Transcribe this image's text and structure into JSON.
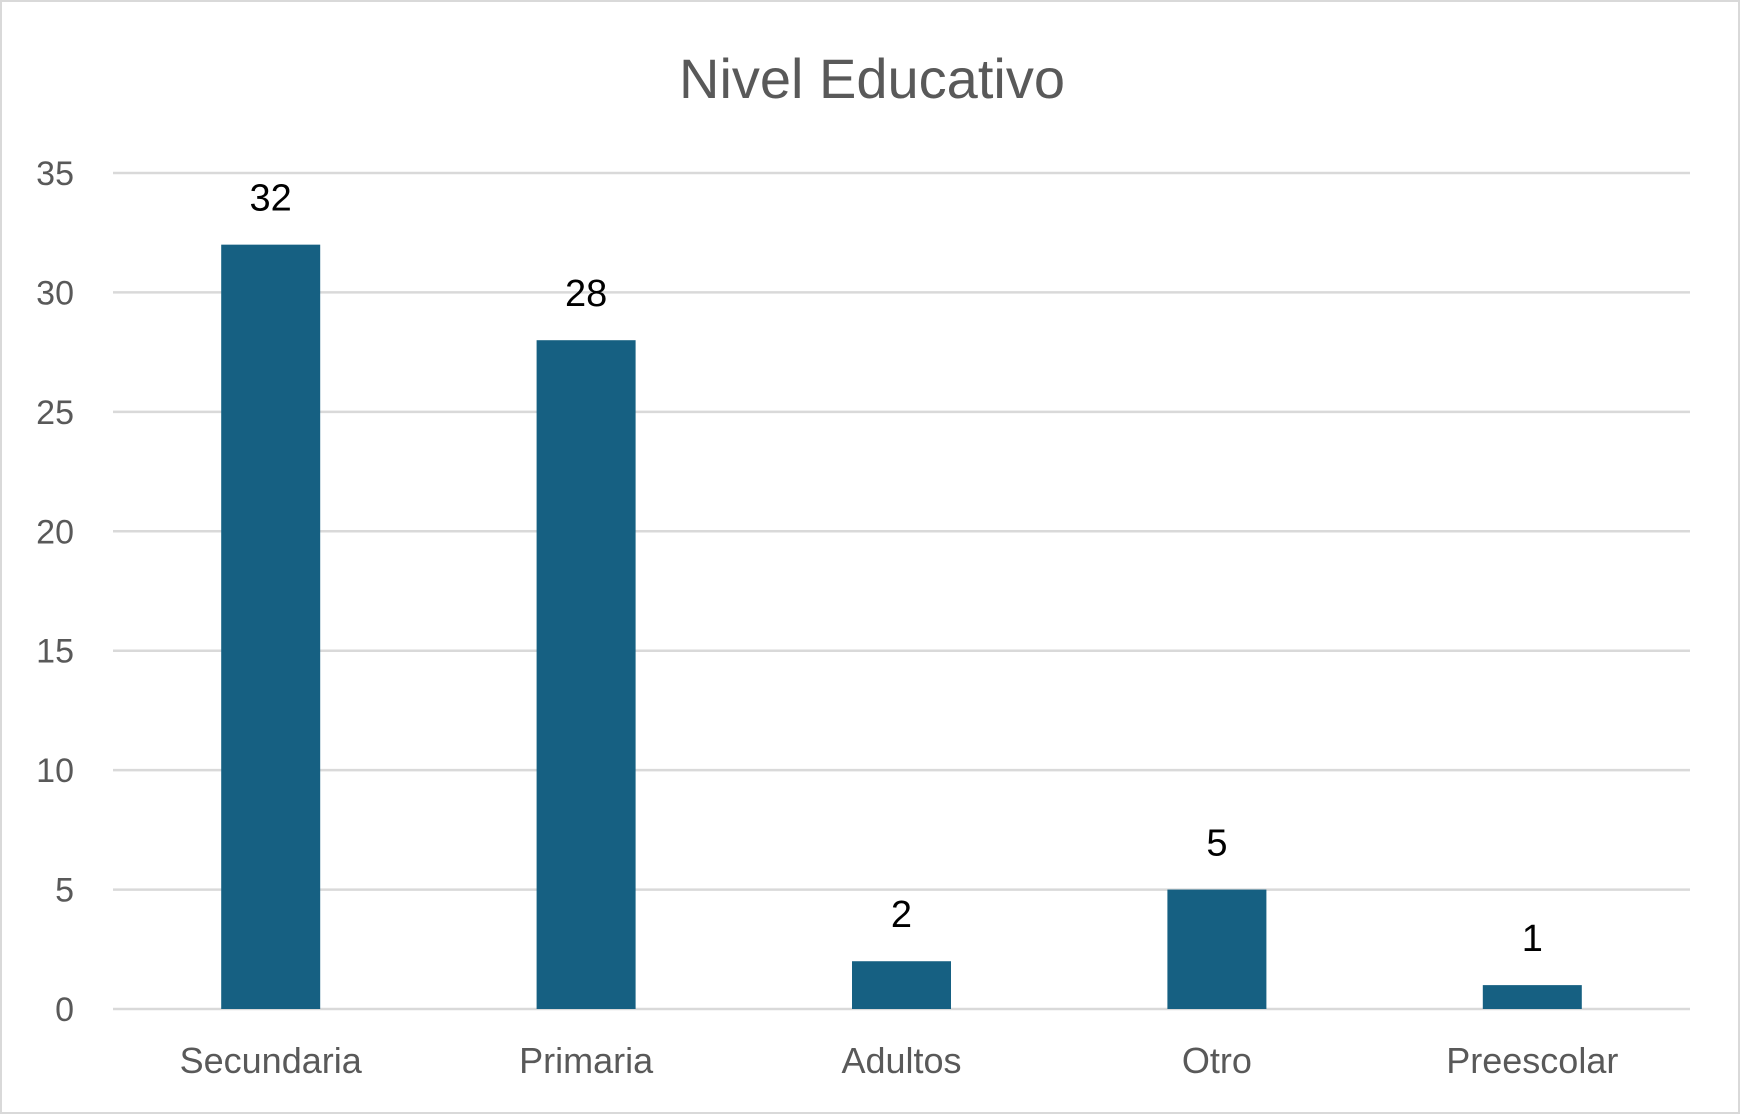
{
  "chart_data": {
    "type": "bar",
    "title": "Nivel Educativo",
    "xlabel": "",
    "ylabel": "",
    "categories": [
      "Secundaria",
      "Primaria",
      "Adultos",
      "Otro",
      "Preescolar"
    ],
    "values": [
      32,
      28,
      2,
      5,
      1
    ],
    "data_labels": [
      "32",
      "28",
      "2",
      "5",
      "1"
    ],
    "ylim": [
      0,
      35
    ],
    "y_ticks": [
      0,
      5,
      10,
      15,
      20,
      25,
      30,
      35
    ],
    "y_tick_labels": [
      "0",
      "5",
      "10",
      "15",
      "20",
      "25",
      "30",
      "35"
    ],
    "grid": true,
    "legend": "none",
    "colors": {
      "bar": "#166082",
      "grid": "#d9d9d9",
      "text": "#595959",
      "data_label": "#000000"
    }
  }
}
